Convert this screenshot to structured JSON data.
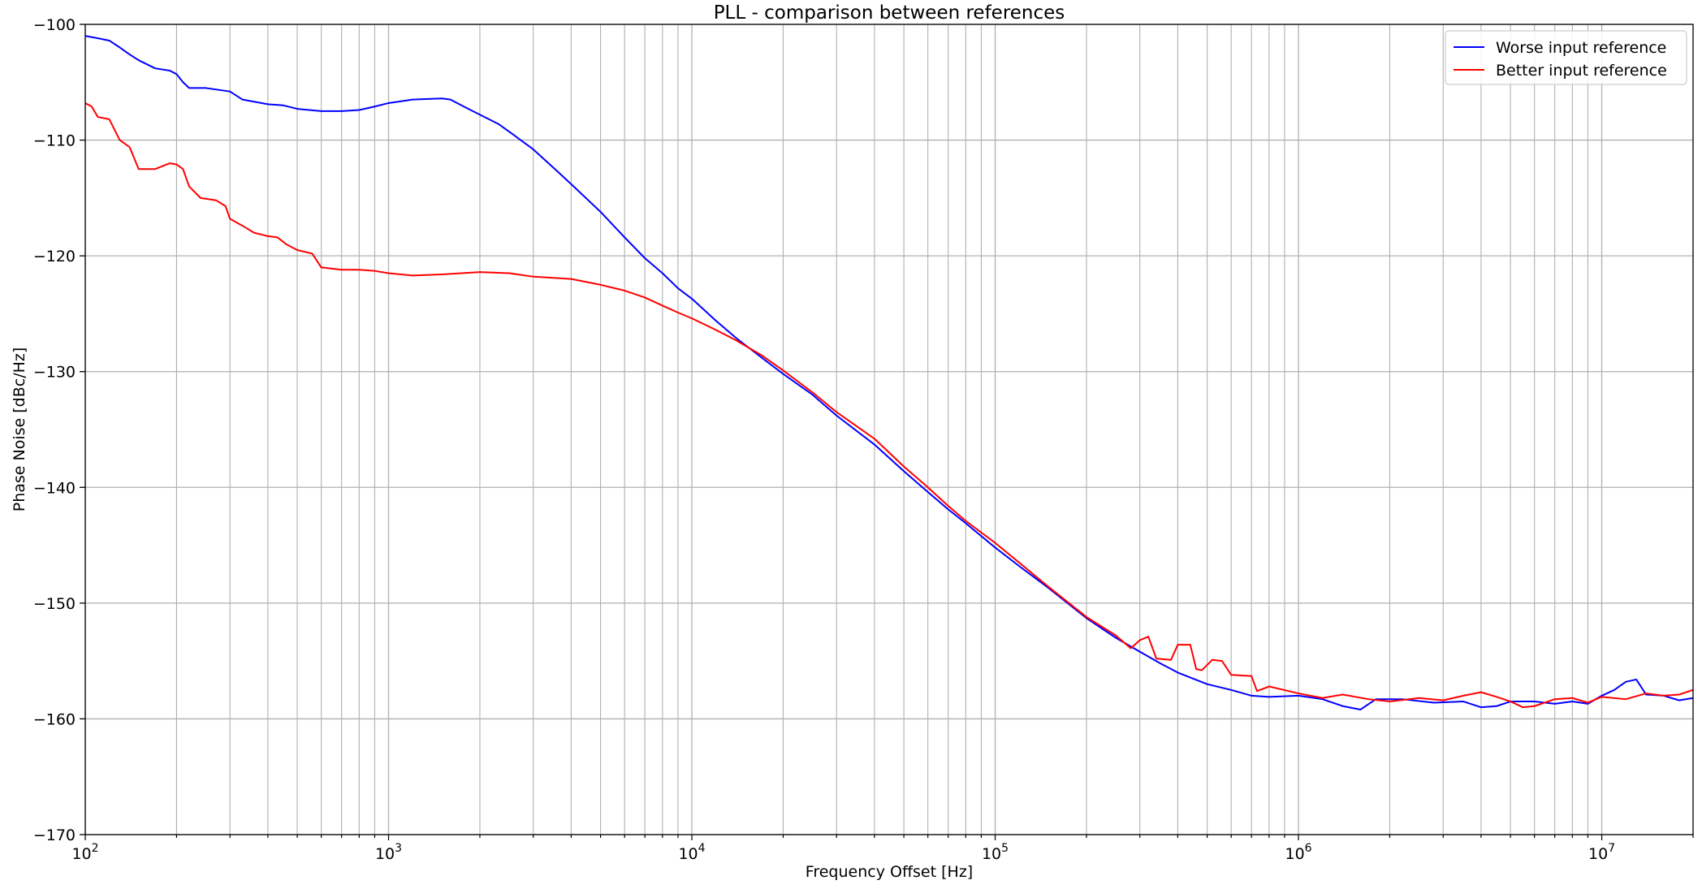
{
  "chart_data": {
    "type": "line",
    "title": "PLL - comparison between references",
    "xlabel": "Frequency Offset [Hz]",
    "ylabel": "Phase Noise [dBc/Hz]",
    "xscale": "log",
    "xlim": [
      100,
      20000000
    ],
    "ylim": [
      -170,
      -100
    ],
    "grid": true,
    "legend_position": "top-right",
    "x_ticks": [
      {
        "value": 100,
        "base": "10",
        "exp": "2"
      },
      {
        "value": 1000,
        "base": "10",
        "exp": "3"
      },
      {
        "value": 10000,
        "base": "10",
        "exp": "4"
      },
      {
        "value": 100000,
        "base": "10",
        "exp": "5"
      },
      {
        "value": 1000000,
        "base": "10",
        "exp": "6"
      },
      {
        "value": 10000000,
        "base": "10",
        "exp": "7"
      }
    ],
    "y_ticks": [
      {
        "value": -100,
        "label": "−100"
      },
      {
        "value": -110,
        "label": "−110"
      },
      {
        "value": -120,
        "label": "−120"
      },
      {
        "value": -130,
        "label": "−130"
      },
      {
        "value": -140,
        "label": "−140"
      },
      {
        "value": -150,
        "label": "−150"
      },
      {
        "value": -160,
        "label": "−160"
      },
      {
        "value": -170,
        "label": "−170"
      }
    ],
    "series": [
      {
        "name": "Worse input reference",
        "color": "#0000ff",
        "points": [
          [
            100,
            -101.0
          ],
          [
            110,
            -101.2
          ],
          [
            120,
            -101.4
          ],
          [
            130,
            -102.0
          ],
          [
            140,
            -102.6
          ],
          [
            150,
            -103.1
          ],
          [
            170,
            -103.8
          ],
          [
            190,
            -104.0
          ],
          [
            200,
            -104.3
          ],
          [
            210,
            -105.0
          ],
          [
            220,
            -105.5
          ],
          [
            250,
            -105.5
          ],
          [
            300,
            -105.8
          ],
          [
            330,
            -106.5
          ],
          [
            400,
            -106.9
          ],
          [
            450,
            -107.0
          ],
          [
            500,
            -107.3
          ],
          [
            600,
            -107.5
          ],
          [
            700,
            -107.5
          ],
          [
            800,
            -107.4
          ],
          [
            900,
            -107.1
          ],
          [
            1000,
            -106.8
          ],
          [
            1200,
            -106.5
          ],
          [
            1500,
            -106.4
          ],
          [
            1600,
            -106.5
          ],
          [
            1800,
            -107.2
          ],
          [
            2000,
            -107.8
          ],
          [
            2300,
            -108.6
          ],
          [
            2600,
            -109.6
          ],
          [
            3000,
            -110.8
          ],
          [
            3500,
            -112.4
          ],
          [
            4000,
            -113.8
          ],
          [
            5000,
            -116.2
          ],
          [
            6000,
            -118.4
          ],
          [
            7000,
            -120.2
          ],
          [
            8000,
            -121.5
          ],
          [
            9000,
            -122.8
          ],
          [
            10000,
            -123.7
          ],
          [
            12000,
            -125.6
          ],
          [
            14000,
            -127.1
          ],
          [
            17000,
            -128.8
          ],
          [
            20000,
            -130.2
          ],
          [
            25000,
            -132.0
          ],
          [
            30000,
            -133.8
          ],
          [
            40000,
            -136.3
          ],
          [
            50000,
            -138.6
          ],
          [
            60000,
            -140.4
          ],
          [
            70000,
            -141.9
          ],
          [
            80000,
            -143.1
          ],
          [
            100000,
            -145.2
          ],
          [
            120000,
            -146.8
          ],
          [
            150000,
            -148.7
          ],
          [
            200000,
            -151.3
          ],
          [
            250000,
            -153.0
          ],
          [
            300000,
            -154.2
          ],
          [
            350000,
            -155.2
          ],
          [
            400000,
            -156.0
          ],
          [
            500000,
            -157.0
          ],
          [
            600000,
            -157.5
          ],
          [
            700000,
            -158.0
          ],
          [
            800000,
            -158.1
          ],
          [
            1000000,
            -158.0
          ],
          [
            1200000,
            -158.3
          ],
          [
            1400000,
            -158.9
          ],
          [
            1600000,
            -159.2
          ],
          [
            1800000,
            -158.3
          ],
          [
            2200000,
            -158.3
          ],
          [
            2800000,
            -158.6
          ],
          [
            3500000,
            -158.5
          ],
          [
            4000000,
            -159.0
          ],
          [
            4500000,
            -158.9
          ],
          [
            5000000,
            -158.5
          ],
          [
            6000000,
            -158.5
          ],
          [
            7000000,
            -158.7
          ],
          [
            8000000,
            -158.5
          ],
          [
            9000000,
            -158.7
          ],
          [
            10000000,
            -158.0
          ],
          [
            11000000,
            -157.5
          ],
          [
            12000000,
            -156.8
          ],
          [
            13000000,
            -156.6
          ],
          [
            14000000,
            -157.9
          ],
          [
            16000000,
            -158.0
          ],
          [
            18000000,
            -158.4
          ],
          [
            20000000,
            -158.2
          ]
        ]
      },
      {
        "name": "Better input reference",
        "color": "#ff0000",
        "points": [
          [
            100,
            -106.8
          ],
          [
            105,
            -107.1
          ],
          [
            110,
            -108.0
          ],
          [
            120,
            -108.2
          ],
          [
            130,
            -110.0
          ],
          [
            140,
            -110.6
          ],
          [
            150,
            -112.5
          ],
          [
            170,
            -112.5
          ],
          [
            190,
            -112.0
          ],
          [
            200,
            -112.1
          ],
          [
            210,
            -112.5
          ],
          [
            220,
            -114.0
          ],
          [
            240,
            -115.0
          ],
          [
            270,
            -115.2
          ],
          [
            290,
            -115.7
          ],
          [
            300,
            -116.8
          ],
          [
            330,
            -117.4
          ],
          [
            360,
            -118.0
          ],
          [
            400,
            -118.3
          ],
          [
            430,
            -118.4
          ],
          [
            460,
            -119.0
          ],
          [
            500,
            -119.5
          ],
          [
            560,
            -119.8
          ],
          [
            600,
            -121.0
          ],
          [
            700,
            -121.2
          ],
          [
            800,
            -121.2
          ],
          [
            900,
            -121.3
          ],
          [
            1000,
            -121.5
          ],
          [
            1200,
            -121.7
          ],
          [
            1500,
            -121.6
          ],
          [
            2000,
            -121.4
          ],
          [
            2500,
            -121.5
          ],
          [
            3000,
            -121.8
          ],
          [
            3500,
            -121.9
          ],
          [
            4000,
            -122.0
          ],
          [
            5000,
            -122.5
          ],
          [
            6000,
            -123.0
          ],
          [
            7000,
            -123.6
          ],
          [
            8000,
            -124.3
          ],
          [
            9000,
            -124.9
          ],
          [
            10000,
            -125.4
          ],
          [
            12000,
            -126.4
          ],
          [
            14000,
            -127.3
          ],
          [
            17000,
            -128.6
          ],
          [
            20000,
            -129.9
          ],
          [
            25000,
            -131.8
          ],
          [
            30000,
            -133.5
          ],
          [
            40000,
            -135.8
          ],
          [
            50000,
            -138.2
          ],
          [
            60000,
            -140.0
          ],
          [
            70000,
            -141.6
          ],
          [
            80000,
            -142.9
          ],
          [
            100000,
            -144.8
          ],
          [
            120000,
            -146.5
          ],
          [
            150000,
            -148.6
          ],
          [
            200000,
            -151.2
          ],
          [
            250000,
            -152.8
          ],
          [
            280000,
            -153.9
          ],
          [
            300000,
            -153.2
          ],
          [
            320000,
            -152.9
          ],
          [
            340000,
            -154.8
          ],
          [
            380000,
            -154.9
          ],
          [
            400000,
            -153.6
          ],
          [
            440000,
            -153.6
          ],
          [
            460000,
            -155.7
          ],
          [
            480000,
            -155.8
          ],
          [
            520000,
            -154.9
          ],
          [
            560000,
            -155.0
          ],
          [
            600000,
            -156.2
          ],
          [
            700000,
            -156.3
          ],
          [
            730000,
            -157.6
          ],
          [
            800000,
            -157.2
          ],
          [
            1000000,
            -157.8
          ],
          [
            1200000,
            -158.2
          ],
          [
            1400000,
            -157.9
          ],
          [
            1700000,
            -158.3
          ],
          [
            2000000,
            -158.5
          ],
          [
            2500000,
            -158.2
          ],
          [
            3000000,
            -158.4
          ],
          [
            3500000,
            -158.0
          ],
          [
            4000000,
            -157.7
          ],
          [
            4500000,
            -158.1
          ],
          [
            5000000,
            -158.5
          ],
          [
            5500000,
            -159.0
          ],
          [
            6000000,
            -158.9
          ],
          [
            7000000,
            -158.3
          ],
          [
            8000000,
            -158.2
          ],
          [
            9000000,
            -158.6
          ],
          [
            10000000,
            -158.1
          ],
          [
            12000000,
            -158.3
          ],
          [
            14000000,
            -157.8
          ],
          [
            16000000,
            -158.0
          ],
          [
            18000000,
            -157.9
          ],
          [
            20000000,
            -157.5
          ]
        ]
      }
    ]
  }
}
